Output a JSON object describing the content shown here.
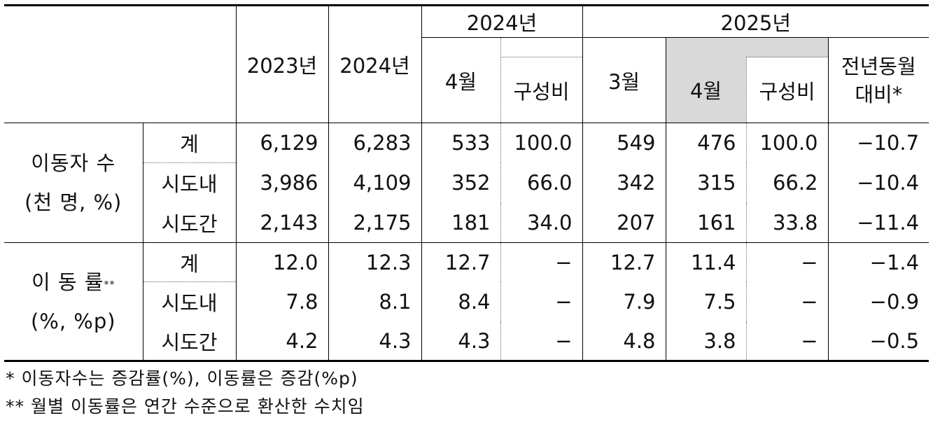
{
  "headers": {
    "y2023": "2023년",
    "y2024": "2024년",
    "group2024": "2024년",
    "group2025": "2025년",
    "apr": "4월",
    "mar": "3월",
    "share": "구성비",
    "yoy_line1": "전년동월",
    "yoy_line2": "대비*"
  },
  "groups": {
    "movers": {
      "line1": "이동자 수",
      "line2": "(천 명, %)"
    },
    "rate": {
      "line1": "이 동 률",
      "line1_sup": "**",
      "line2": "(%, %p)"
    }
  },
  "rows": [
    {
      "label": "계",
      "v2023": "6,129",
      "v2024": "6,283",
      "apr2024": "533",
      "share2024": "100.0",
      "mar2025": "549",
      "apr2025": "476",
      "share2025": "100.0",
      "yoy": "−10.7"
    },
    {
      "label": "시도내",
      "v2023": "3,986",
      "v2024": "4,109",
      "apr2024": "352",
      "share2024": "66.0",
      "mar2025": "342",
      "apr2025": "315",
      "share2025": "66.2",
      "yoy": "−10.4"
    },
    {
      "label": "시도간",
      "v2023": "2,143",
      "v2024": "2,175",
      "apr2024": "181",
      "share2024": "34.0",
      "mar2025": "207",
      "apr2025": "161",
      "share2025": "33.8",
      "yoy": "−11.4"
    },
    {
      "label": "계",
      "v2023": "12.0",
      "v2024": "12.3",
      "apr2024": "12.7",
      "share2024": "−",
      "mar2025": "12.7",
      "apr2025": "11.4",
      "share2025": "−",
      "yoy": "−1.4"
    },
    {
      "label": "시도내",
      "v2023": "7.8",
      "v2024": "8.1",
      "apr2024": "8.4",
      "share2024": "−",
      "mar2025": "7.9",
      "apr2025": "7.5",
      "share2025": "−",
      "yoy": "−0.9"
    },
    {
      "label": "시도간",
      "v2023": "4.2",
      "v2024": "4.3",
      "apr2024": "4.3",
      "share2024": "−",
      "mar2025": "4.8",
      "apr2025": "3.8",
      "share2025": "−",
      "yoy": "−0.5"
    }
  ],
  "notes": [
    "* 이동자수는 증감률(%), 이동률은 증감(%p)",
    "** 월별 이동률은 연간 수준으로 환산한 수치임"
  ]
}
